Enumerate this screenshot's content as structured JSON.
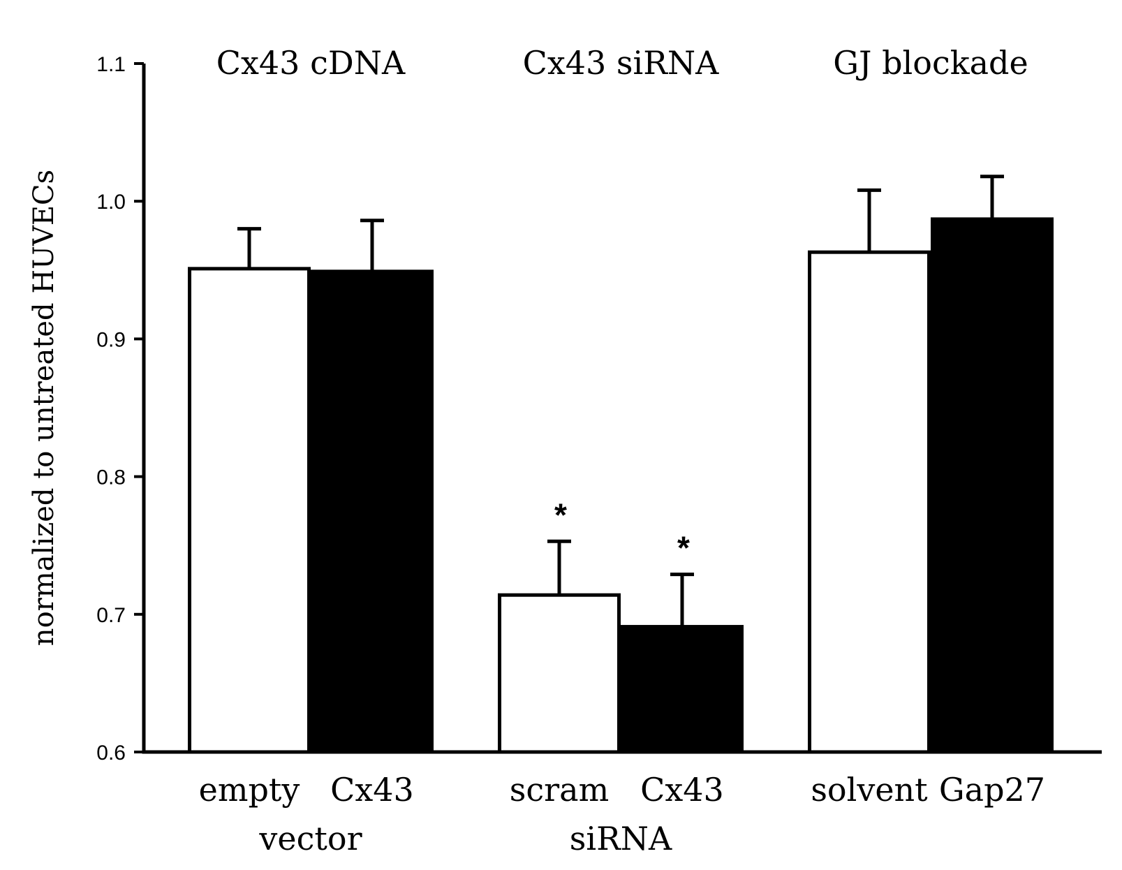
{
  "chart_data": {
    "type": "bar",
    "ylabel": "normalized to untreated HUVECs",
    "ylim": [
      0.6,
      1.1
    ],
    "yticks": [
      0.6,
      0.7,
      0.8,
      0.9,
      1.0,
      1.1
    ],
    "ytick_labels": [
      "0.6",
      "0.7",
      "0.8",
      "0.9",
      "1.0",
      "1.1"
    ],
    "groups": [
      {
        "title": "Cx43 cDNA",
        "label_lines": [
          "vector"
        ],
        "bars": [
          {
            "label": "empty",
            "value": 0.951,
            "error": 0.029,
            "fill": "white",
            "significance": ""
          },
          {
            "label": "Cx43",
            "value": 0.949,
            "error": 0.037,
            "fill": "black",
            "significance": ""
          }
        ]
      },
      {
        "title": "Cx43 siRNA",
        "label_lines": [
          "siRNA"
        ],
        "bars": [
          {
            "label": "scram",
            "value": 0.714,
            "error": 0.039,
            "fill": "white",
            "significance": "*"
          },
          {
            "label": "Cx43",
            "value": 0.691,
            "error": 0.038,
            "fill": "black",
            "significance": "*"
          }
        ]
      },
      {
        "title": "GJ blockade",
        "label_lines": [
          ""
        ],
        "bars": [
          {
            "label": "solvent",
            "value": 0.963,
            "error": 0.045,
            "fill": "white",
            "significance": ""
          },
          {
            "label": "Gap27",
            "value": 0.987,
            "error": 0.031,
            "fill": "black",
            "significance": ""
          }
        ]
      }
    ]
  }
}
